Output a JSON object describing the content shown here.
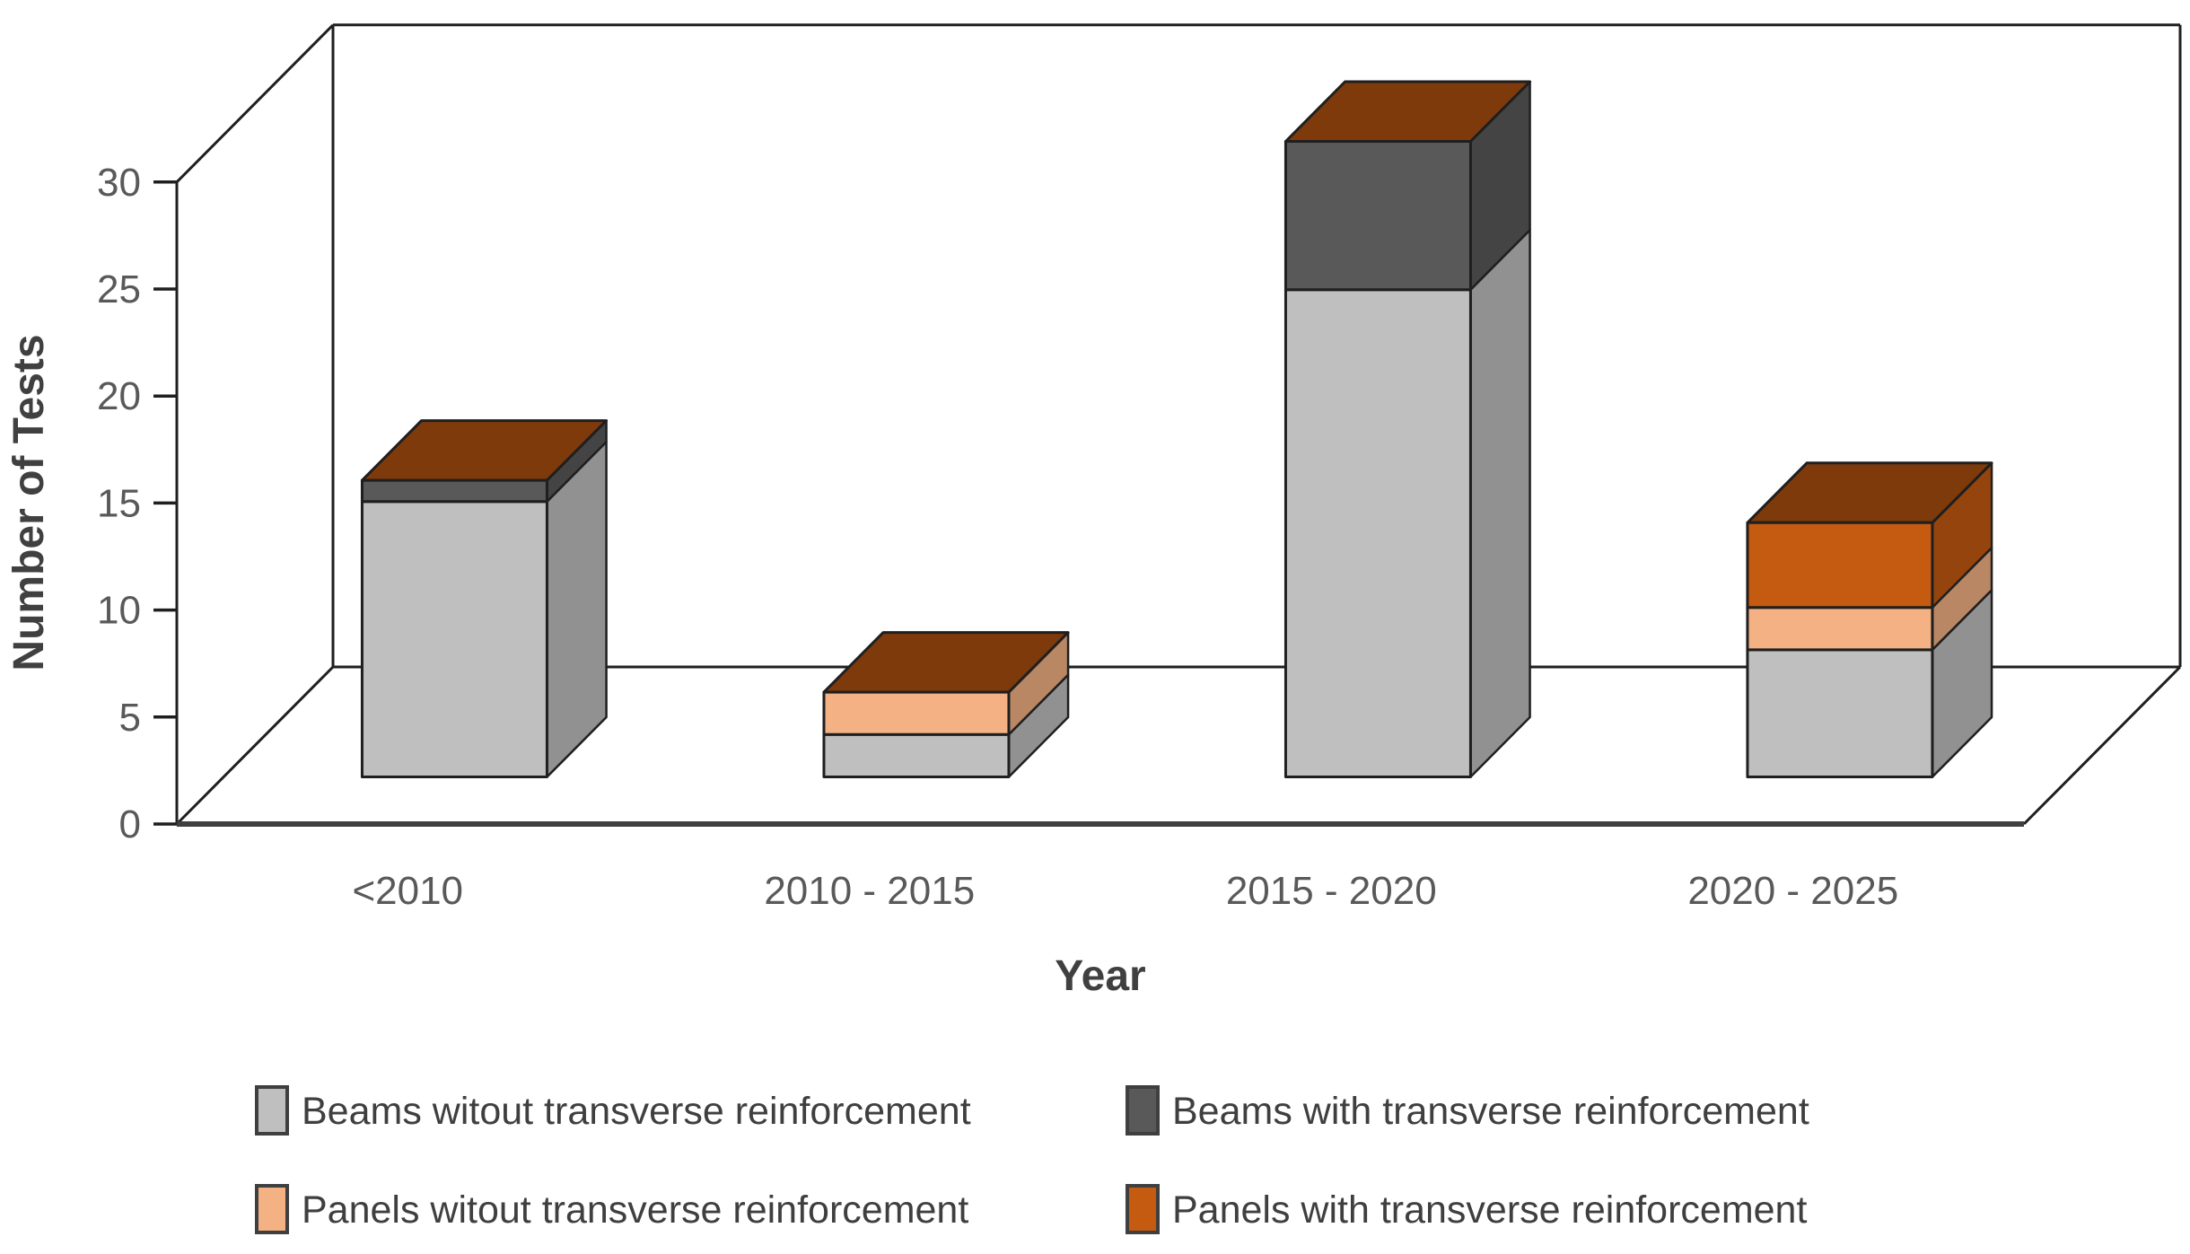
{
  "chart_data": {
    "type": "bar",
    "subtype": "3d-stacked-column",
    "title": "",
    "xlabel": "Year",
    "ylabel": "Number of Tests",
    "categories": [
      "<2010",
      "2010 - 2015",
      "2015 - 2020",
      "2020 - 2025"
    ],
    "series": [
      {
        "name": "Beams witout transverse reinforcement",
        "color": "#BFBFBF",
        "values": [
          13,
          2,
          23,
          6
        ]
      },
      {
        "name": "Beams with transverse reinforcement",
        "color": "#595959",
        "values": [
          1,
          0,
          7,
          0
        ]
      },
      {
        "name": "Panels witout transverse reinforcement",
        "color": "#F4B183",
        "values": [
          0,
          2,
          0,
          2
        ]
      },
      {
        "name": "Panels with transverse reinforcement",
        "color": "#C55A11",
        "values": [
          0,
          0,
          0,
          4
        ]
      }
    ],
    "totals": [
      14,
      4,
      30,
      12
    ],
    "y_ticks": [
      0,
      5,
      10,
      15,
      20,
      25,
      30
    ],
    "ylim": [
      0,
      30
    ],
    "grid": false,
    "legend_position": "bottom",
    "legend_rows": [
      [
        0,
        1
      ],
      [
        2,
        3
      ]
    ],
    "outline_color": "#1f1f1f",
    "floor_edge_color": "#3f3f3f"
  }
}
